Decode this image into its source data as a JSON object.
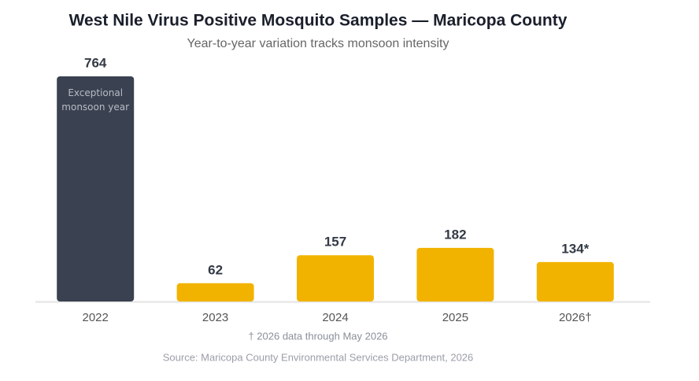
{
  "chart_data": {
    "type": "bar",
    "title": "West Nile Virus Positive Mosquito Samples — Maricopa County",
    "subtitle": "Year-to-year variation tracks monsoon intensity",
    "categories": [
      "2022",
      "2023",
      "2024",
      "2025",
      "2026†"
    ],
    "values": [
      764,
      62,
      157,
      182,
      134
    ],
    "value_labels": [
      "764",
      "62",
      "157",
      "182",
      "134*"
    ],
    "colors": [
      "#3a4150",
      "#f2b300",
      "#f2b300",
      "#f2b300",
      "#f2b300"
    ],
    "annotation": "Exceptional monsoon year",
    "footnote": "† 2026 data through May 2026",
    "source": "Source: Maricopa County Environmental Services Department, 2026"
  }
}
